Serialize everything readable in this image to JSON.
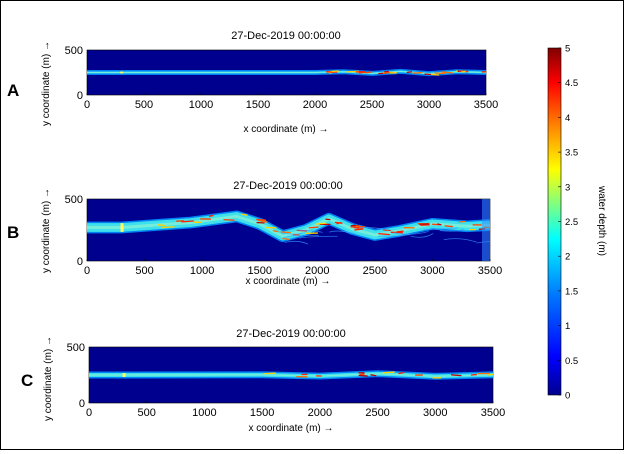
{
  "chart_data": [
    {
      "type": "heatmap",
      "panel_label": "A",
      "title": "27-Dec-2019 00:00:00",
      "xlabel": "x coordinate (m) →",
      "ylabel": "y coordinate (m) →",
      "xlim": [
        0,
        3500
      ],
      "ylim": [
        0,
        500
      ],
      "xticks": [
        "0",
        "500",
        "1000",
        "1500",
        "2000",
        "2500",
        "3000",
        "3500"
      ],
      "yticks": [
        "0",
        "500"
      ],
      "channel": {
        "center_y": [
          [
            0,
            250
          ],
          [
            300,
            250
          ],
          [
            2000,
            250
          ],
          [
            2250,
            258
          ],
          [
            2500,
            240
          ],
          [
            2750,
            262
          ],
          [
            3000,
            238
          ],
          [
            3250,
            258
          ],
          [
            3500,
            250
          ]
        ],
        "width": 22,
        "meander_from_x": 2000
      }
    },
    {
      "type": "heatmap",
      "panel_label": "B",
      "title": "27-Dec-2019 00:00:00",
      "xlabel": "x coordinate (m) →",
      "ylabel": "y coordinate (m) →",
      "xlim": [
        0,
        3500
      ],
      "ylim": [
        0,
        500
      ],
      "xticks": [
        "0",
        "500",
        "1000",
        "1500",
        "2000",
        "2500",
        "3000",
        "3500"
      ],
      "yticks": [
        "0",
        "500"
      ],
      "channel": {
        "center_y": [
          [
            0,
            270
          ],
          [
            300,
            270
          ],
          [
            600,
            290
          ],
          [
            900,
            310
          ],
          [
            1300,
            360
          ],
          [
            1500,
            300
          ],
          [
            1700,
            200
          ],
          [
            1900,
            250
          ],
          [
            2100,
            340
          ],
          [
            2300,
            260
          ],
          [
            2500,
            210
          ],
          [
            2700,
            240
          ],
          [
            3000,
            300
          ],
          [
            3300,
            280
          ],
          [
            3500,
            290
          ]
        ],
        "width": 70,
        "meander_from_x": 500
      }
    },
    {
      "type": "heatmap",
      "panel_label": "C",
      "title": "27-Dec-2019 00:00:00",
      "xlabel": "x coordinate (m) →",
      "ylabel": "y coordinate (m) →",
      "xlim": [
        0,
        3500
      ],
      "ylim": [
        0,
        500
      ],
      "xticks": [
        "0",
        "500",
        "1000",
        "1500",
        "2000",
        "2500",
        "3000",
        "3500"
      ],
      "yticks": [
        "0",
        "500"
      ],
      "channel": {
        "center_y": [
          [
            0,
            250
          ],
          [
            300,
            250
          ],
          [
            1500,
            252
          ],
          [
            2000,
            240
          ],
          [
            2500,
            262
          ],
          [
            3000,
            238
          ],
          [
            3500,
            252
          ]
        ],
        "width": 35,
        "meander_from_x": 1500
      }
    }
  ],
  "colorbar": {
    "label": "water depth (m)",
    "range": [
      0,
      5
    ],
    "ticks": [
      "0",
      "0.5",
      "1",
      "1.5",
      "2",
      "2.5",
      "3",
      "3.5",
      "4",
      "4.5",
      "5"
    ],
    "colormap": "jet",
    "stops": [
      "#00008f",
      "#0000ff",
      "#0080ff",
      "#00ffff",
      "#80ff80",
      "#ffff00",
      "#ff8000",
      "#ff0000",
      "#800000"
    ]
  }
}
